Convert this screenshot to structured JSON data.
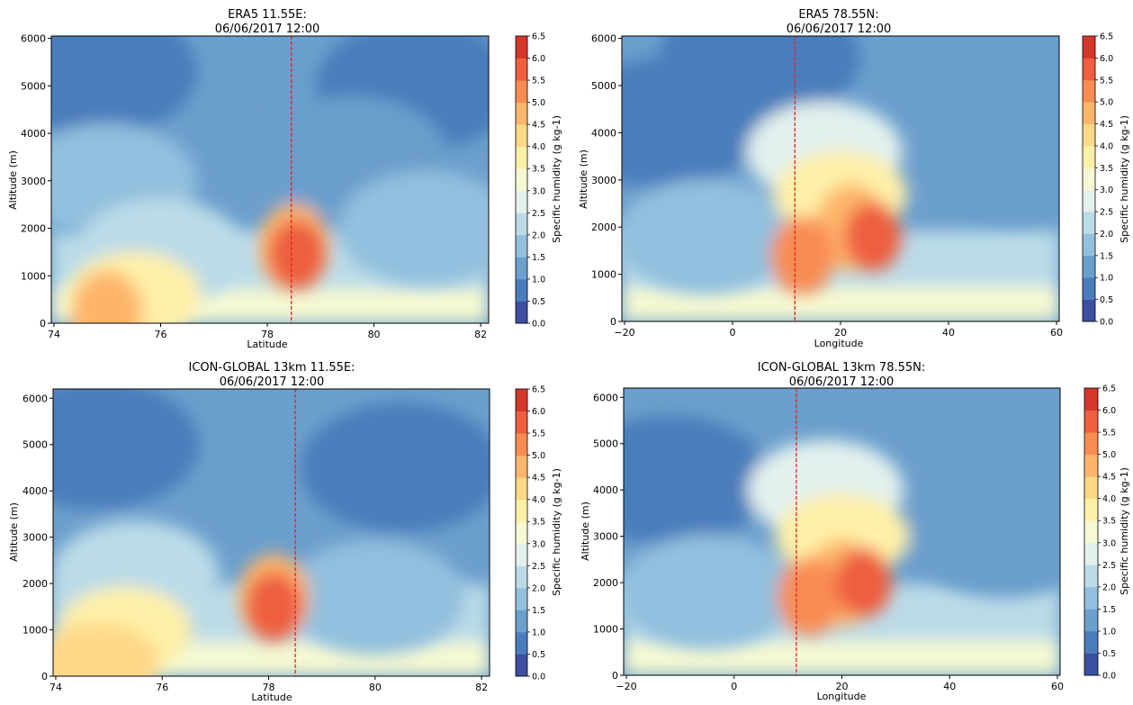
{
  "chart_data": [
    {
      "type": "contour",
      "title_line1": "ERA5 11.55E:",
      "title_line2": "06/06/2017 12:00",
      "xlabel": "Latitude",
      "ylabel": "Altitude (m)",
      "colorbar_label": "Specific humidity (g kg-1)",
      "xlim": [
        73.95,
        82.15
      ],
      "ylim": [
        0,
        6050
      ],
      "xticks": [
        74,
        76,
        78,
        80,
        82
      ],
      "yticks": [
        0,
        1000,
        2000,
        3000,
        4000,
        5000,
        6000
      ],
      "reference_line_x": 78.45,
      "reference_line_color": "#e8231a",
      "features": [
        {
          "x": 78.55,
          "y": 1450,
          "value": 5.5
        },
        {
          "x": 78.5,
          "y": 1600,
          "value": 4.5
        },
        {
          "x": 75.0,
          "y": 200,
          "value": 4.5
        },
        {
          "x": 75.5,
          "y": 600,
          "value": 3.5
        },
        {
          "x": 76.0,
          "y": 1500,
          "value": 2.0
        },
        {
          "x": 75.0,
          "y": 3000,
          "value": 1.5
        },
        {
          "x": 74.8,
          "y": 5300,
          "value": 0.5
        },
        {
          "x": 80.8,
          "y": 5000,
          "value": 0.5
        },
        {
          "x": 81.0,
          "y": 2000,
          "value": 1.5
        },
        {
          "x": 79.6,
          "y": 3500,
          "value": 1.0
        }
      ]
    },
    {
      "type": "contour",
      "title_line1": "ERA5 78.55N:",
      "title_line2": "06/06/2017 12:00",
      "xlabel": "Longitude",
      "ylabel": "Altitude (m)",
      "colorbar_label": "Specific humidity (g kg-1)",
      "xlim": [
        -20.5,
        60.5
      ],
      "ylim": [
        0,
        6050
      ],
      "xticks": [
        -20,
        0,
        20,
        40,
        60
      ],
      "yticks": [
        0,
        1000,
        2000,
        3000,
        4000,
        5000,
        6000
      ],
      "reference_line_x": 11.55,
      "reference_line_color": "#e8231a",
      "features": [
        {
          "x": 26,
          "y": 1800,
          "value": 5.5
        },
        {
          "x": 13,
          "y": 1400,
          "value": 5.0
        },
        {
          "x": 22,
          "y": 2000,
          "value": 4.5
        },
        {
          "x": 20,
          "y": 2700,
          "value": 3.5
        },
        {
          "x": 17,
          "y": 3600,
          "value": 2.5
        },
        {
          "x": -13,
          "y": 4200,
          "value": 0.5
        },
        {
          "x": 52,
          "y": 3400,
          "value": 1.0
        },
        {
          "x": 5,
          "y": 5600,
          "value": 0.5
        },
        {
          "x": -5,
          "y": 1800,
          "value": 1.5
        }
      ]
    },
    {
      "type": "contour",
      "title_line1": "ICON-GLOBAL 13km 11.55E:",
      "title_line2": "06/06/2017 12:00",
      "xlabel": "Latitude",
      "ylabel": "Altitude (m)",
      "colorbar_label": "Specific humidity (g kg-1)",
      "xlim": [
        73.95,
        82.15
      ],
      "ylim": [
        0,
        6200
      ],
      "xticks": [
        74,
        76,
        78,
        80,
        82
      ],
      "yticks": [
        0,
        1000,
        2000,
        3000,
        4000,
        5000,
        6000
      ],
      "reference_line_x": 78.5,
      "reference_line_color": "#e8231a",
      "features": [
        {
          "x": 78.1,
          "y": 1500,
          "value": 5.5
        },
        {
          "x": 78.1,
          "y": 1700,
          "value": 4.5
        },
        {
          "x": 74.8,
          "y": 300,
          "value": 4.0
        },
        {
          "x": 75.3,
          "y": 1000,
          "value": 3.5
        },
        {
          "x": 75.5,
          "y": 2200,
          "value": 2.0
        },
        {
          "x": 74.8,
          "y": 5000,
          "value": 0.5
        },
        {
          "x": 80.5,
          "y": 4500,
          "value": 0.5
        },
        {
          "x": 80.0,
          "y": 1700,
          "value": 1.5
        }
      ]
    },
    {
      "type": "contour",
      "title_line1": "ICON-GLOBAL 13km 78.55N:",
      "title_line2": "06/06/2017 12:00",
      "xlabel": "Longitude",
      "ylabel": "Altitude (m)",
      "colorbar_label": "Specific humidity (g kg-1)",
      "xlim": [
        -20.5,
        60.5
      ],
      "ylim": [
        0,
        6200
      ],
      "xticks": [
        -20,
        0,
        20,
        40,
        60
      ],
      "yticks": [
        0,
        1000,
        2000,
        3000,
        4000,
        5000,
        6000
      ],
      "reference_line_x": 11.55,
      "reference_line_color": "#e8231a",
      "features": [
        {
          "x": 24,
          "y": 2000,
          "value": 5.5
        },
        {
          "x": 14,
          "y": 1700,
          "value": 5.0
        },
        {
          "x": 20,
          "y": 2000,
          "value": 4.5
        },
        {
          "x": 20,
          "y": 3000,
          "value": 3.5
        },
        {
          "x": 17,
          "y": 4000,
          "value": 2.5
        },
        {
          "x": -12,
          "y": 4200,
          "value": 0.5
        },
        {
          "x": 50,
          "y": 3000,
          "value": 1.0
        },
        {
          "x": -5,
          "y": 1800,
          "value": 1.5
        }
      ]
    }
  ],
  "colorbar": {
    "levels": [
      0.0,
      0.5,
      1.0,
      1.5,
      2.0,
      2.5,
      3.0,
      3.5,
      4.0,
      4.5,
      5.0,
      5.5,
      6.0,
      6.5
    ],
    "tick_labels": [
      "0.0",
      "0.5",
      "1.0",
      "1.5",
      "2.0",
      "2.5",
      "3.0",
      "3.5",
      "4.0",
      "4.5",
      "5.0",
      "5.5",
      "6.0",
      "6.5"
    ],
    "colors": [
      "#3c4fa0",
      "#4a7dbb",
      "#6b9fcc",
      "#92c0de",
      "#bbdbe8",
      "#e2f1ee",
      "#f6f9d2",
      "#fff0a8",
      "#fed887",
      "#fdb56b",
      "#f98c52",
      "#ee5e3f",
      "#d6352b"
    ]
  }
}
